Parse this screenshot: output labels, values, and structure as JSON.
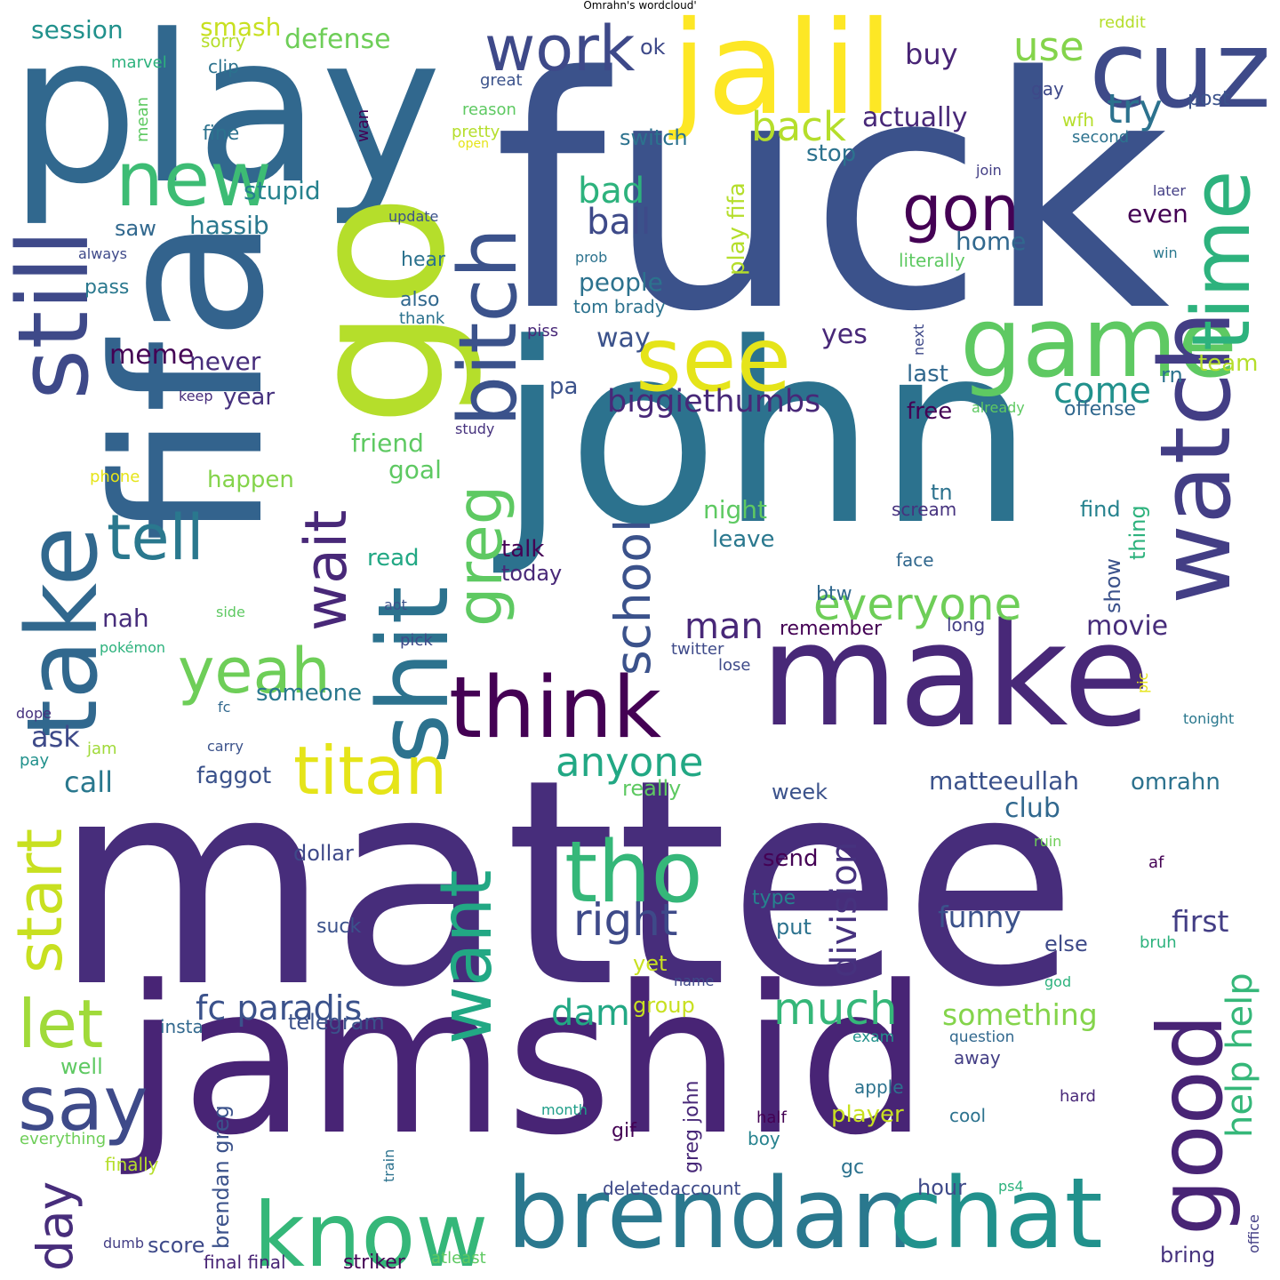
{
  "title": "Omrahn's wordcloud'",
  "words": [
    {
      "text": "fuck",
      "color": "#3b528b"
    },
    {
      "text": "mattee",
      "color": "#472d7b"
    },
    {
      "text": "john",
      "color": "#2c728e"
    },
    {
      "text": "play",
      "color": "#31688e"
    },
    {
      "text": "fifa",
      "color": "#33638d"
    },
    {
      "text": "jamshid",
      "color": "#482475"
    },
    {
      "text": "go",
      "color": "#b5de2b"
    },
    {
      "text": "make",
      "color": "#482878"
    },
    {
      "text": "jalil",
      "color": "#fde725"
    },
    {
      "text": "cuz",
      "color": "#3e4a89"
    },
    {
      "text": "brendan",
      "color": "#2a788e"
    },
    {
      "text": "chat",
      "color": "#21918c"
    },
    {
      "text": "still",
      "color": "#3e4989"
    },
    {
      "text": "take",
      "color": "#31688e"
    },
    {
      "text": "shit",
      "color": "#2c728e"
    },
    {
      "text": "know",
      "color": "#35b779"
    },
    {
      "text": "game",
      "color": "#5ec962"
    },
    {
      "text": "see",
      "color": "#e5e419"
    },
    {
      "text": "new",
      "color": "#3dbc74"
    },
    {
      "text": "watch",
      "color": "#433e85"
    },
    {
      "text": "time",
      "color": "#2db27d"
    },
    {
      "text": "good",
      "color": "#482475"
    },
    {
      "text": "think",
      "color": "#440154"
    },
    {
      "text": "bitch",
      "color": "#3b528b"
    },
    {
      "text": "tho",
      "color": "#35b779"
    },
    {
      "text": "yeah",
      "color": "#6ece58"
    },
    {
      "text": "want",
      "color": "#22a884"
    },
    {
      "text": "work",
      "color": "#3e4989"
    },
    {
      "text": "titan",
      "color": "#e5e419"
    },
    {
      "text": "say",
      "color": "#3e4a89"
    },
    {
      "text": "let",
      "color": "#a0da39"
    },
    {
      "text": "start",
      "color": "#c8e020"
    },
    {
      "text": "tell",
      "color": "#2a788e"
    },
    {
      "text": "gon",
      "color": "#440154"
    },
    {
      "text": "wait",
      "color": "#482878"
    },
    {
      "text": "greg",
      "color": "#5ec962"
    },
    {
      "text": "school",
      "color": "#3b528b"
    },
    {
      "text": "day",
      "color": "#472d7b"
    },
    {
      "text": "right",
      "color": "#3e4a89"
    },
    {
      "text": "much",
      "color": "#35b779"
    },
    {
      "text": "everyone",
      "color": "#6ece58"
    },
    {
      "text": "division",
      "color": "#46327e"
    },
    {
      "text": "anyone",
      "color": "#22a884"
    },
    {
      "text": "help help",
      "color": "#35b779"
    },
    {
      "text": "back",
      "color": "#b5de2b"
    },
    {
      "text": "try",
      "color": "#2c728e"
    },
    {
      "text": "use",
      "color": "#84d44b"
    },
    {
      "text": "man",
      "color": "#482878"
    },
    {
      "text": "fc paradis",
      "color": "#3b528b"
    },
    {
      "text": "biggiethumbs",
      "color": "#482878"
    },
    {
      "text": "come",
      "color": "#21918c"
    },
    {
      "text": "bad",
      "color": "#2db27d"
    },
    {
      "text": "ball",
      "color": "#3e4a89"
    },
    {
      "text": "dam",
      "color": "#22a884"
    },
    {
      "text": "something",
      "color": "#84d44b"
    },
    {
      "text": "funny",
      "color": "#3b528b"
    },
    {
      "text": "first",
      "color": "#433e85"
    },
    {
      "text": "matteeullah",
      "color": "#3b528b"
    },
    {
      "text": "actually",
      "color": "#482878"
    },
    {
      "text": "defense",
      "color": "#6ece58"
    },
    {
      "text": "session",
      "color": "#21918c"
    },
    {
      "text": "movie",
      "color": "#472d7b"
    },
    {
      "text": "smash",
      "color": "#c8e020"
    },
    {
      "text": "club",
      "color": "#31688e"
    },
    {
      "text": "buy",
      "color": "#482475"
    },
    {
      "text": "call",
      "color": "#2a788e"
    },
    {
      "text": "ask",
      "color": "#3e4a89"
    },
    {
      "text": "omrahn",
      "color": "#2c728e"
    },
    {
      "text": "people",
      "color": "#2c728e"
    },
    {
      "text": "yes",
      "color": "#482878"
    },
    {
      "text": "way",
      "color": "#3b528b"
    },
    {
      "text": "never",
      "color": "#472d7b"
    },
    {
      "text": "meme",
      "color": "#440154"
    },
    {
      "text": "stupid",
      "color": "#26828e"
    },
    {
      "text": "hassib",
      "color": "#2a788e"
    },
    {
      "text": "home",
      "color": "#31688e"
    },
    {
      "text": "even",
      "color": "#440154"
    },
    {
      "text": "stop",
      "color": "#2c728e"
    },
    {
      "text": "switch",
      "color": "#2c728e"
    },
    {
      "text": "play fifa",
      "color": "#b5de2b"
    },
    {
      "text": "friend",
      "color": "#5ec962"
    },
    {
      "text": "goal",
      "color": "#5ec962"
    },
    {
      "text": "night",
      "color": "#5ec962"
    },
    {
      "text": "leave",
      "color": "#2a788e"
    },
    {
      "text": "talk",
      "color": "#440154"
    },
    {
      "text": "read",
      "color": "#22a884"
    },
    {
      "text": "today",
      "color": "#482878"
    },
    {
      "text": "happen",
      "color": "#84d44b"
    },
    {
      "text": "someone",
      "color": "#2a788e"
    },
    {
      "text": "faggot",
      "color": "#3b528b"
    },
    {
      "text": "nah",
      "color": "#472d7b"
    },
    {
      "text": "year",
      "color": "#46327e"
    },
    {
      "text": "pa",
      "color": "#3b528b"
    },
    {
      "text": "free",
      "color": "#440154"
    },
    {
      "text": "last",
      "color": "#31688e"
    },
    {
      "text": "team",
      "color": "#b5de2b"
    },
    {
      "text": "rn",
      "color": "#2c728e"
    },
    {
      "text": "offense",
      "color": "#31688e"
    },
    {
      "text": "show",
      "color": "#3b528b"
    },
    {
      "text": "thing",
      "color": "#2db27d"
    },
    {
      "text": "find",
      "color": "#26828e"
    },
    {
      "text": "tn",
      "color": "#2c728e"
    },
    {
      "text": "scream",
      "color": "#46327e"
    },
    {
      "text": "face",
      "color": "#31688e"
    },
    {
      "text": "btw",
      "color": "#31688e"
    },
    {
      "text": "remember",
      "color": "#440154"
    },
    {
      "text": "twitter",
      "color": "#3e4a89"
    },
    {
      "text": "lose",
      "color": "#3e4a89"
    },
    {
      "text": "long",
      "color": "#433e85"
    },
    {
      "text": "really",
      "color": "#5ec962"
    },
    {
      "text": "week",
      "color": "#3b528b"
    },
    {
      "text": "send",
      "color": "#440154"
    },
    {
      "text": "type",
      "color": "#26828e"
    },
    {
      "text": "put",
      "color": "#2c728e"
    },
    {
      "text": "else",
      "color": "#3e4a89"
    },
    {
      "text": "yet",
      "color": "#c8e020"
    },
    {
      "text": "group",
      "color": "#c8e020"
    },
    {
      "text": "brendan greg",
      "color": "#3b528b"
    },
    {
      "text": "telegram",
      "color": "#3b528b"
    },
    {
      "text": "dollar",
      "color": "#3e4989"
    },
    {
      "text": "suck",
      "color": "#3b528b"
    },
    {
      "text": "well",
      "color": "#5ec962"
    },
    {
      "text": "insta",
      "color": "#31688e"
    },
    {
      "text": "score",
      "color": "#3e4a89"
    },
    {
      "text": "finally",
      "color": "#b5de2b"
    },
    {
      "text": "final final",
      "color": "#482475"
    },
    {
      "text": "striker",
      "color": "#440154"
    },
    {
      "text": "atleast",
      "color": "#5ec962"
    },
    {
      "text": "gif",
      "color": "#440154"
    },
    {
      "text": "greg john",
      "color": "#482878"
    },
    {
      "text": "player",
      "color": "#c8e020"
    },
    {
      "text": "gc",
      "color": "#2c728e"
    },
    {
      "text": "hour",
      "color": "#3e4a89"
    },
    {
      "text": "bring",
      "color": "#46327e"
    },
    {
      "text": "away",
      "color": "#433e85"
    },
    {
      "text": "cool",
      "color": "#2c728e"
    },
    {
      "text": "apple",
      "color": "#2c728e"
    },
    {
      "text": "boy",
      "color": "#26828e"
    },
    {
      "text": "half",
      "color": "#440154"
    },
    {
      "text": "hard",
      "color": "#482878"
    },
    {
      "text": "question",
      "color": "#31688e"
    },
    {
      "text": "exam",
      "color": "#21918c"
    },
    {
      "text": "deletedaccount",
      "color": "#3e4a89"
    },
    {
      "text": "ps4",
      "color": "#2db27d"
    },
    {
      "text": "office",
      "color": "#433e85"
    },
    {
      "text": "month",
      "color": "#1f9e89"
    },
    {
      "text": "train",
      "color": "#2c728e"
    },
    {
      "text": "everything",
      "color": "#6ece58"
    },
    {
      "text": "dumb",
      "color": "#433e85"
    },
    {
      "text": "af",
      "color": "#440154"
    },
    {
      "text": "bruh",
      "color": "#2db27d"
    },
    {
      "text": "god",
      "color": "#2db27d"
    },
    {
      "text": "ruin",
      "color": "#6ece58"
    },
    {
      "text": "name",
      "color": "#3e4989"
    },
    {
      "text": "ok",
      "color": "#3e4989"
    },
    {
      "text": "sorry",
      "color": "#b5de2b"
    },
    {
      "text": "marvel",
      "color": "#2db27d"
    },
    {
      "text": "clip",
      "color": "#2c728e"
    },
    {
      "text": "mean",
      "color": "#5ec962"
    },
    {
      "text": "fine",
      "color": "#2c728e"
    },
    {
      "text": "saw",
      "color": "#31688e"
    },
    {
      "text": "great",
      "color": "#3b528b"
    },
    {
      "text": "reason",
      "color": "#5ec962"
    },
    {
      "text": "pretty",
      "color": "#b5de2b"
    },
    {
      "text": "open",
      "color": "#e5e419"
    },
    {
      "text": "wan",
      "color": "#440154"
    },
    {
      "text": "update",
      "color": "#3b528b"
    },
    {
      "text": "always",
      "color": "#3e4989"
    },
    {
      "text": "prob",
      "color": "#2c728e"
    },
    {
      "text": "pass",
      "color": "#2a788e"
    },
    {
      "text": "hear",
      "color": "#2c728e"
    },
    {
      "text": "also",
      "color": "#31688e"
    },
    {
      "text": "thank",
      "color": "#2c728e"
    },
    {
      "text": "tom brady",
      "color": "#2c728e"
    },
    {
      "text": "piss",
      "color": "#482878"
    },
    {
      "text": "keep",
      "color": "#472d7b"
    },
    {
      "text": "study",
      "color": "#46327e"
    },
    {
      "text": "phone",
      "color": "#e5e419"
    },
    {
      "text": "side",
      "color": "#5ec962"
    },
    {
      "text": "aot",
      "color": "#3b528b"
    },
    {
      "text": "pick",
      "color": "#3e4a89"
    },
    {
      "text": "pokémon",
      "color": "#2db27d"
    },
    {
      "text": "dope",
      "color": "#46327e"
    },
    {
      "text": "fc",
      "color": "#31688e"
    },
    {
      "text": "jam",
      "color": "#a0da39"
    },
    {
      "text": "carry",
      "color": "#3b528b"
    },
    {
      "text": "pay",
      "color": "#21918c"
    },
    {
      "text": "reddit",
      "color": "#b5de2b"
    },
    {
      "text": "post",
      "color": "#3b528b"
    },
    {
      "text": "gay",
      "color": "#3e4989"
    },
    {
      "text": "wfh",
      "color": "#b5de2b"
    },
    {
      "text": "second",
      "color": "#2c728e"
    },
    {
      "text": "join",
      "color": "#433e85"
    },
    {
      "text": "later",
      "color": "#433e85"
    },
    {
      "text": "win",
      "color": "#2a788e"
    },
    {
      "text": "literally",
      "color": "#5ec962"
    },
    {
      "text": "next",
      "color": "#3e4989"
    },
    {
      "text": "already",
      "color": "#5ec962"
    },
    {
      "text": "pic",
      "color": "#e5e419"
    },
    {
      "text": "tonight",
      "color": "#2a788e"
    }
  ]
}
